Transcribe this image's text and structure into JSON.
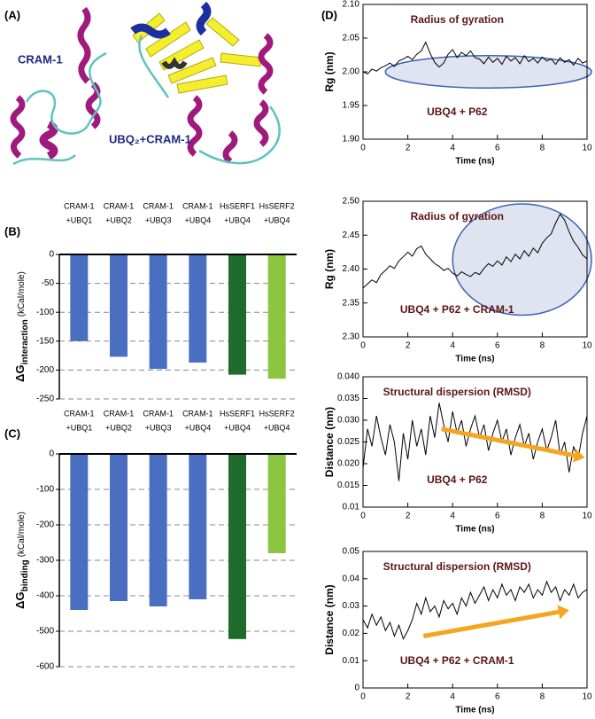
{
  "panels": {
    "a": {
      "panel_label": "(A)",
      "label_left": "CRAM-1",
      "label_right": "UBQ₂+CRAM-1"
    }
  },
  "chart_data": [
    {
      "type": "bar",
      "panel_label": "(B)",
      "y_label": {
        "main": "ΔG",
        "sub": "interaction",
        "unit": "(kCal/mole)"
      },
      "categories": [
        [
          "CRAM-1",
          "+UBQ1"
        ],
        [
          "CRAM-1",
          "+UBQ2"
        ],
        [
          "CRAM-1",
          "+UBQ3"
        ],
        [
          "CRAM-1",
          "+UBQ4"
        ],
        [
          "HsSERF1",
          "+UBQ4"
        ],
        [
          "HsSERF2",
          "+UBQ4"
        ]
      ],
      "values": [
        -150,
        -177,
        -198,
        -187,
        -208,
        -215
      ],
      "colors": [
        "#4a6fc0",
        "#4a6fc0",
        "#4a6fc0",
        "#4a6fc0",
        "#1f6b2c",
        "#8cc640"
      ],
      "ylim": [
        -250,
        0
      ],
      "yticks": [
        0,
        -50,
        -100,
        -150,
        -200,
        -250
      ],
      "grid": true
    },
    {
      "type": "bar",
      "panel_label": "(C)",
      "y_label": {
        "main": "ΔG",
        "sub": "binding",
        "unit": "(kCal/mole)"
      },
      "categories": [
        [
          "CRAM-1",
          "+UBQ1"
        ],
        [
          "CRAM-1",
          "+UBQ2"
        ],
        [
          "CRAM-1",
          "+UBQ3"
        ],
        [
          "CRAM-1",
          "+UBQ4"
        ],
        [
          "HsSERF1",
          "+UBQ4"
        ],
        [
          "HsSERF2",
          "+UBQ4"
        ]
      ],
      "values": [
        -440,
        -415,
        -430,
        -410,
        -522,
        -280
      ],
      "colors": [
        "#4a6fc0",
        "#4a6fc0",
        "#4a6fc0",
        "#4a6fc0",
        "#1f6b2c",
        "#8cc640"
      ],
      "ylim": [
        -600,
        0
      ],
      "yticks": [
        0,
        -100,
        -200,
        -300,
        -400,
        -500,
        -600
      ],
      "grid": true
    },
    {
      "type": "line",
      "panel_label": "(D)",
      "title": "Radius of gyration",
      "annotation": "UBQ4 + P62",
      "x_label": "Time (ns)",
      "y_label": "Rg (nm)",
      "color": "#000000",
      "xlim": [
        0,
        10
      ],
      "xticks": [
        0,
        2,
        4,
        6,
        8,
        10
      ],
      "ylim": [
        1.9,
        2.1
      ],
      "yticks": [
        {
          "value": 1.9,
          "label": "1.90"
        },
        1.95,
        {
          "value": 2,
          "label": "2.00"
        },
        2.05,
        {
          "value": 2.1,
          "label": "2.10"
        }
      ],
      "x": [
        0,
        0.2,
        0.4,
        0.6,
        0.8,
        1,
        1.2,
        1.4,
        1.6,
        1.8,
        2,
        2.2,
        2.4,
        2.6,
        2.8,
        3,
        3.2,
        3.4,
        3.6,
        3.8,
        4,
        4.2,
        4.4,
        4.6,
        4.8,
        5,
        5.2,
        5.4,
        5.6,
        5.8,
        6,
        6.2,
        6.4,
        6.6,
        6.8,
        7,
        7.2,
        7.4,
        7.6,
        7.8,
        8,
        8.2,
        8.4,
        8.6,
        8.8,
        9,
        9.2,
        9.4,
        9.6,
        9.8,
        10
      ],
      "values": [
        2.0,
        1.997,
        2.004,
        2.001,
        2.006,
        2.009,
        2.013,
        2.008,
        2.016,
        2.019,
        2.023,
        2.018,
        2.026,
        2.031,
        2.044,
        2.027,
        2.014,
        2.007,
        2.013,
        2.026,
        2.033,
        2.021,
        2.029,
        2.024,
        2.031,
        2.021,
        2.019,
        2.012,
        2.022,
        2.014,
        2.02,
        2.011,
        2.023,
        2.016,
        2.021,
        2.012,
        2.024,
        2.015,
        2.02,
        2.013,
        2.022,
        2.016,
        2.019,
        2.011,
        2.021,
        2.014,
        2.018,
        2.01,
        2.02,
        2.013,
        2.016
      ]
    },
    {
      "type": "line",
      "title": "Radius of gyration",
      "annotation": "UBQ4 + P62 + CRAM-1",
      "x_label": "Time (ns)",
      "y_label": "Rg (nm)",
      "color": "#000000",
      "xlim": [
        0,
        10
      ],
      "xticks": [
        0,
        2,
        4,
        6,
        8,
        10
      ],
      "ylim": [
        2.3,
        2.5
      ],
      "yticks": [
        {
          "value": 2.3,
          "label": "2.30"
        },
        2.35,
        {
          "value": 2.4,
          "label": "2.40"
        },
        2.45,
        {
          "value": 2.5,
          "label": "2.50"
        }
      ],
      "x": [
        0,
        0.2,
        0.4,
        0.6,
        0.8,
        1,
        1.2,
        1.4,
        1.6,
        1.8,
        2,
        2.2,
        2.4,
        2.6,
        2.8,
        3,
        3.2,
        3.4,
        3.6,
        3.8,
        4,
        4.2,
        4.4,
        4.6,
        4.8,
        5,
        5.2,
        5.4,
        5.6,
        5.8,
        6,
        6.2,
        6.4,
        6.6,
        6.8,
        7,
        7.2,
        7.4,
        7.6,
        7.8,
        8,
        8.2,
        8.4,
        8.6,
        8.8,
        9,
        9.2,
        9.4,
        9.6,
        9.8,
        10
      ],
      "values": [
        2.372,
        2.378,
        2.384,
        2.38,
        2.392,
        2.398,
        2.405,
        2.401,
        2.412,
        2.418,
        2.425,
        2.419,
        2.43,
        2.434,
        2.422,
        2.415,
        2.408,
        2.404,
        2.398,
        2.401,
        2.394,
        2.39,
        2.396,
        2.392,
        2.389,
        2.395,
        2.392,
        2.401,
        2.408,
        2.404,
        2.412,
        2.406,
        2.418,
        2.411,
        2.422,
        2.415,
        2.427,
        2.419,
        2.431,
        2.424,
        2.438,
        2.446,
        2.452,
        2.468,
        2.481,
        2.472,
        2.455,
        2.441,
        2.432,
        2.421,
        2.415
      ]
    },
    {
      "type": "line",
      "title": "Structural dispersion (RMSD)",
      "annotation": "UBQ4 + P62",
      "x_label": "Time (ns)",
      "y_label": "Distance (nm)",
      "color": "#000000",
      "xlim": [
        0,
        10
      ],
      "xticks": [
        0,
        2,
        4,
        6,
        8,
        10
      ],
      "ylim": [
        0.01,
        0.04
      ],
      "yticks": [
        0.01,
        0.015,
        {
          "value": 0.02,
          "label": "0.020"
        },
        0.025,
        {
          "value": 0.03,
          "label": "0.030"
        },
        0.035,
        {
          "value": 0.04,
          "label": "0.040"
        }
      ],
      "x": [
        0,
        0.2,
        0.4,
        0.6,
        0.8,
        1,
        1.2,
        1.4,
        1.6,
        1.8,
        2,
        2.2,
        2.4,
        2.6,
        2.8,
        3,
        3.2,
        3.4,
        3.6,
        3.8,
        4,
        4.2,
        4.4,
        4.6,
        4.8,
        5,
        5.2,
        5.4,
        5.6,
        5.8,
        6,
        6.2,
        6.4,
        6.6,
        6.8,
        7,
        7.2,
        7.4,
        7.6,
        7.8,
        8,
        8.2,
        8.4,
        8.6,
        8.8,
        9,
        9.2,
        9.4,
        9.6,
        9.8,
        10
      ],
      "values": [
        0.019,
        0.028,
        0.024,
        0.031,
        0.026,
        0.022,
        0.029,
        0.025,
        0.016,
        0.027,
        0.021,
        0.03,
        0.024,
        0.028,
        0.022,
        0.031,
        0.026,
        0.034,
        0.029,
        0.025,
        0.032,
        0.027,
        0.03,
        0.024,
        0.028,
        0.031,
        0.026,
        0.029,
        0.023,
        0.027,
        0.03,
        0.025,
        0.028,
        0.022,
        0.026,
        0.029,
        0.024,
        0.027,
        0.021,
        0.025,
        0.028,
        0.023,
        0.026,
        0.03,
        0.022,
        0.025,
        0.018,
        0.024,
        0.021,
        0.027,
        0.031
      ]
    },
    {
      "type": "line",
      "title": "Structural dispersion (RMSD)",
      "annotation": "UBQ4 + P62 + CRAM-1",
      "x_label": "Time (ns)",
      "y_label": "Distance (nm)",
      "color": "#000000",
      "xlim": [
        0,
        10
      ],
      "xticks": [
        0,
        2,
        4,
        6,
        8,
        10
      ],
      "ylim": [
        0,
        0.05
      ],
      "yticks": [
        0,
        0.01,
        0.02,
        0.03,
        0.04,
        0.05
      ],
      "x": [
        0,
        0.2,
        0.4,
        0.6,
        0.8,
        1,
        1.2,
        1.4,
        1.6,
        1.8,
        2,
        2.2,
        2.4,
        2.6,
        2.8,
        3,
        3.2,
        3.4,
        3.6,
        3.8,
        4,
        4.2,
        4.4,
        4.6,
        4.8,
        5,
        5.2,
        5.4,
        5.6,
        5.8,
        6,
        6.2,
        6.4,
        6.6,
        6.8,
        7,
        7.2,
        7.4,
        7.6,
        7.8,
        8,
        8.2,
        8.4,
        8.6,
        8.8,
        9,
        9.2,
        9.4,
        9.6,
        9.8,
        10
      ],
      "values": [
        0.025,
        0.022,
        0.027,
        0.023,
        0.026,
        0.021,
        0.024,
        0.019,
        0.023,
        0.018,
        0.021,
        0.025,
        0.031,
        0.027,
        0.033,
        0.028,
        0.03,
        0.026,
        0.032,
        0.029,
        0.031,
        0.027,
        0.033,
        0.03,
        0.035,
        0.031,
        0.034,
        0.037,
        0.032,
        0.036,
        0.033,
        0.038,
        0.034,
        0.036,
        0.032,
        0.037,
        0.035,
        0.038,
        0.033,
        0.036,
        0.034,
        0.039,
        0.035,
        0.037,
        0.032,
        0.036,
        0.034,
        0.038,
        0.033,
        0.035,
        0.036
      ]
    }
  ]
}
